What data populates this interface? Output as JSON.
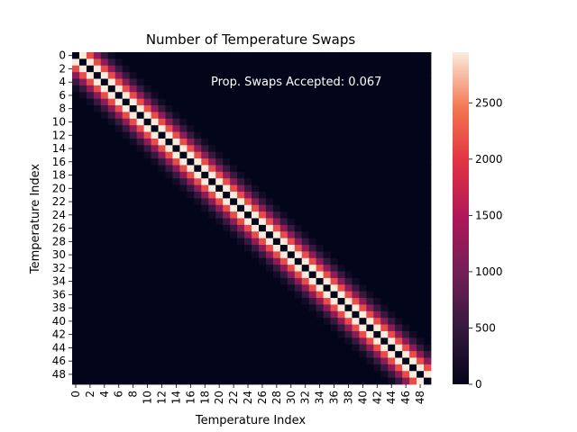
{
  "chart_data": {
    "type": "heatmap",
    "title": "Number of Temperature Swaps",
    "xlabel": "Temperature Index",
    "ylabel": "Temperature Index",
    "annotation": "Prop. Swaps Accepted: 0.067",
    "n": 50,
    "x_tick_labels": [
      "0",
      "2",
      "4",
      "6",
      "8",
      "10",
      "12",
      "14",
      "16",
      "18",
      "20",
      "22",
      "24",
      "26",
      "28",
      "30",
      "32",
      "34",
      "36",
      "38",
      "40",
      "42",
      "44",
      "46",
      "48"
    ],
    "y_tick_labels": [
      "0",
      "2",
      "4",
      "6",
      "8",
      "10",
      "12",
      "14",
      "16",
      "18",
      "20",
      "22",
      "24",
      "26",
      "28",
      "30",
      "32",
      "34",
      "36",
      "38",
      "40",
      "42",
      "44",
      "46",
      "48"
    ],
    "colorbar": {
      "colormap": "rocket",
      "range": [
        0,
        2950
      ],
      "ticks": [
        0,
        500,
        1000,
        1500,
        2000,
        2500
      ]
    },
    "diagonal_profile": {
      "description": "value at offset |i-j| from the diagonal",
      "offsets": [
        0,
        1,
        2,
        3,
        4,
        5
      ],
      "values": [
        0,
        2950,
        2150,
        1200,
        500,
        150
      ]
    },
    "annotation_color": "#ffffff"
  }
}
